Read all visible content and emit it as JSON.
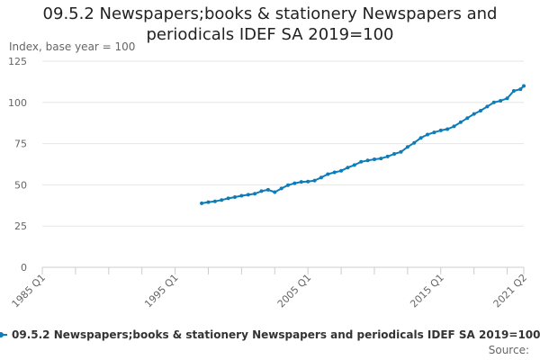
{
  "chart_data": {
    "type": "line",
    "title": "09.5.2 Newspapers;books & stationery Newspapers and periodicals IDEF SA 2019=100",
    "ylabel": "Index, base year = 100",
    "xlabel": "",
    "ylim": [
      0,
      125
    ],
    "yticks": [
      0,
      25,
      50,
      75,
      100,
      125
    ],
    "xticks": [
      "1985 Q1",
      "1995 Q1",
      "2005 Q1",
      "2015 Q1",
      "2021 Q2"
    ],
    "grid": "horizontal",
    "legend": "bottom",
    "color": "#0e7cb8",
    "series": [
      {
        "name": "09.5.2 Newspapers;books & stationery Newspapers and periodicals IDEF SA 2019=100",
        "x": [
          "1997 Q1",
          "1997 Q3",
          "1998 Q1",
          "1998 Q3",
          "1999 Q1",
          "1999 Q3",
          "2000 Q1",
          "2000 Q3",
          "2001 Q1",
          "2001 Q3",
          "2002 Q1",
          "2002 Q3",
          "2003 Q1",
          "2003 Q3",
          "2004 Q1",
          "2004 Q3",
          "2005 Q1",
          "2005 Q3",
          "2006 Q1",
          "2006 Q3",
          "2007 Q1",
          "2007 Q3",
          "2008 Q1",
          "2008 Q3",
          "2009 Q1",
          "2009 Q3",
          "2010 Q1",
          "2010 Q3",
          "2011 Q1",
          "2011 Q3",
          "2012 Q1",
          "2012 Q3",
          "2013 Q1",
          "2013 Q3",
          "2014 Q1",
          "2014 Q3",
          "2015 Q1",
          "2015 Q3",
          "2016 Q1",
          "2016 Q3",
          "2017 Q1",
          "2017 Q3",
          "2018 Q1",
          "2018 Q3",
          "2019 Q1",
          "2019 Q3",
          "2020 Q1",
          "2020 Q3",
          "2021 Q1",
          "2021 Q2"
        ],
        "values": [
          38.8,
          39.5,
          40.0,
          40.8,
          41.8,
          42.6,
          43.4,
          44.0,
          44.6,
          46.2,
          47.0,
          45.6,
          47.8,
          49.8,
          51.0,
          51.8,
          52.0,
          52.6,
          54.5,
          56.5,
          57.6,
          58.5,
          60.5,
          62.0,
          64.0,
          64.8,
          65.5,
          66.0,
          67.2,
          68.8,
          70.0,
          73.0,
          75.5,
          78.5,
          80.5,
          81.8,
          83.0,
          83.8,
          85.5,
          88.0,
          90.5,
          93.0,
          95.0,
          97.5,
          100.0,
          101.0,
          102.5,
          107.0,
          108.0,
          110.0
        ]
      }
    ]
  },
  "source_label": "Source:"
}
